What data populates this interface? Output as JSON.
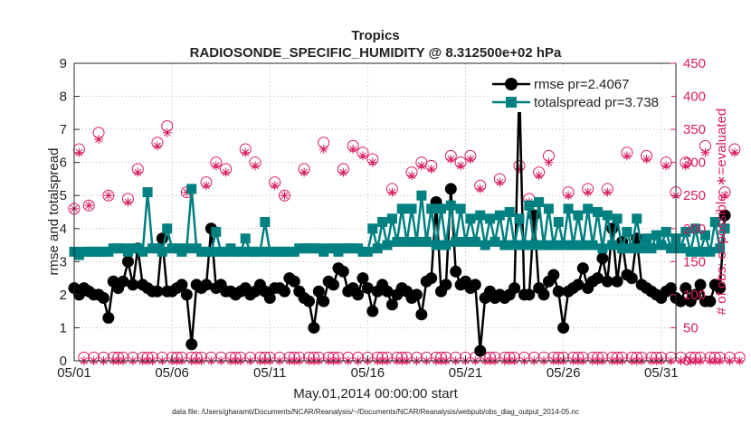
{
  "chart_data": {
    "type": "line",
    "title": "Tropics",
    "subtitle": "RADIOSONDE_SPECIFIC_HUMIDITY @ 8.312500e+02 hPa",
    "xlabel": "May.01,2014 00:00:00 start",
    "ylabel_left": "rmse and totalspread",
    "ylabel_right": "# of obs: o=possible; ∗=evaluated",
    "footnote": "data file: /Users/gharamti/Documents/NCAR/Reanalysis/~/Documents/NCAR/Reanalysis/webpub/obs_diag_output_2014-05.nc",
    "x_ticks": [
      {
        "day": 1,
        "label": "05/01"
      },
      {
        "day": 6,
        "label": "05/06"
      },
      {
        "day": 11,
        "label": "05/11"
      },
      {
        "day": 16,
        "label": "05/16"
      },
      {
        "day": 21,
        "label": "05/21"
      },
      {
        "day": 26,
        "label": "05/26"
      },
      {
        "day": 31,
        "label": "05/31"
      }
    ],
    "xlim": [
      1,
      31.75
    ],
    "ylim_left": [
      0,
      9
    ],
    "yticks_left": [
      "0",
      "1",
      "2",
      "3",
      "4",
      "5",
      "6",
      "7",
      "8",
      "9"
    ],
    "ylim_right": [
      0,
      450
    ],
    "yticks_right": [
      "0",
      "50",
      "100",
      "150",
      "200",
      "250",
      "300",
      "350",
      "400",
      "450"
    ],
    "step_days": 0.25,
    "series": [
      {
        "name": "rmse pr=2.4067",
        "color": "#000000",
        "axis": "left",
        "values": [
          2.2,
          2.0,
          2.2,
          2.1,
          2.0,
          2.0,
          1.9,
          1.3,
          2.4,
          2.2,
          2.4,
          3.0,
          2.3,
          3.4,
          2.3,
          2.2,
          2.1,
          2.1,
          3.7,
          2.1,
          2.1,
          2.2,
          2.3,
          2.0,
          0.5,
          2.3,
          2.2,
          2.3,
          4.0,
          2.2,
          2.3,
          2.1,
          2.1,
          2.0,
          2.1,
          2.2,
          2.0,
          2.1,
          2.3,
          2.1,
          1.9,
          2.2,
          2.2,
          2.1,
          2.5,
          2.4,
          2.1,
          1.9,
          1.8,
          1.0,
          2.1,
          1.8,
          2.4,
          2.3,
          2.8,
          2.7,
          2.1,
          2.2,
          2.0,
          2.5,
          2.2,
          1.5,
          2.1,
          2.3,
          2.1,
          1.7,
          2.0,
          2.2,
          2.1,
          1.9,
          2.0,
          1.4,
          2.4,
          2.5,
          4.8,
          2.1,
          2.3,
          5.2,
          2.7,
          2.3,
          2.4,
          2.2,
          2.3,
          0.3,
          1.9,
          2.1,
          1.9,
          2.0,
          1.9,
          2.0,
          2.2,
          8.3,
          2.0,
          2.0,
          4.4,
          2.2,
          2.0,
          2.4,
          2.6,
          2.1,
          1.0,
          2.1,
          2.2,
          2.3,
          2.8,
          2.2,
          2.4,
          2.5,
          3.1,
          2.4,
          4.0,
          2.4,
          3.6,
          2.6,
          2.5,
          3.7,
          2.3,
          2.2,
          2.1,
          2.0,
          1.9,
          2.1,
          2.2,
          1.9,
          1.8,
          2.2,
          1.8,
          2.0,
          2.3,
          1.8,
          1.8,
          2.3,
          2.2,
          4.4
        ]
      },
      {
        "name": "totalspread pr=3.738",
        "color": "#008080",
        "axis": "left",
        "values": [
          3.3,
          3.2,
          3.3,
          3.3,
          3.3,
          3.3,
          3.3,
          3.3,
          3.4,
          3.4,
          3.4,
          3.3,
          3.4,
          3.4,
          3.3,
          5.1,
          3.4,
          3.4,
          3.3,
          4.0,
          3.4,
          3.4,
          3.3,
          3.4,
          5.2,
          3.4,
          3.3,
          3.3,
          3.3,
          3.9,
          3.3,
          3.3,
          3.4,
          3.3,
          3.3,
          3.7,
          3.3,
          3.3,
          3.3,
          4.2,
          3.3,
          3.3,
          3.3,
          3.3,
          3.3,
          3.3,
          3.4,
          3.4,
          3.4,
          3.4,
          3.4,
          3.3,
          3.4,
          3.4,
          3.3,
          3.4,
          3.4,
          3.4,
          3.4,
          3.3,
          3.3,
          4.0,
          3.4,
          4.2,
          3.5,
          4.3,
          3.6,
          4.6,
          3.6,
          4.6,
          3.6,
          5.0,
          3.6,
          4.6,
          3.5,
          4.6,
          3.5,
          4.7,
          3.6,
          4.6,
          3.6,
          4.3,
          3.6,
          4.4,
          3.5,
          4.3,
          3.6,
          4.4,
          3.5,
          4.5,
          3.5,
          4.3,
          3.5,
          4.7,
          3.5,
          4.8,
          3.5,
          4.6,
          3.5,
          4.2,
          3.5,
          4.6,
          3.5,
          4.4,
          3.5,
          4.6,
          3.5,
          4.5,
          3.4,
          4.4,
          3.5,
          4.3,
          3.4,
          3.9,
          3.4,
          4.3,
          3.4,
          3.7,
          3.4,
          3.8,
          3.5,
          3.9,
          3.4,
          3.7,
          3.4,
          3.9,
          3.3,
          4.0,
          3.3,
          3.8,
          3.3,
          4.2,
          3.4,
          4.0
        ]
      },
      {
        "name": "possible",
        "color": "#d81b60",
        "axis": "right",
        "marker": "circle",
        "values": [
          230,
          320,
          5,
          235,
          5,
          345,
          5,
          250,
          5,
          5,
          5,
          245,
          5,
          290,
          5,
          5,
          5,
          330,
          5,
          355,
          5,
          5,
          5,
          255,
          5,
          5,
          5,
          270,
          5,
          300,
          5,
          290,
          5,
          5,
          5,
          320,
          5,
          300,
          5,
          5,
          5,
          270,
          5,
          250,
          5,
          5,
          5,
          290,
          5,
          5,
          5,
          330,
          5,
          5,
          5,
          290,
          5,
          325,
          5,
          315,
          5,
          305,
          5,
          5,
          5,
          260,
          5,
          5,
          5,
          285,
          5,
          300,
          5,
          295,
          5,
          5,
          5,
          310,
          5,
          300,
          5,
          310,
          5,
          265,
          5,
          5,
          5,
          275,
          5,
          5,
          5,
          295,
          5,
          245,
          5,
          285,
          5,
          310,
          5,
          5,
          5,
          255,
          5,
          5,
          5,
          260,
          5,
          5,
          5,
          260,
          5,
          5,
          5,
          315,
          5,
          5,
          5,
          310,
          5,
          5,
          5,
          300,
          5,
          255,
          5,
          300,
          5,
          5,
          5,
          325,
          5,
          5,
          5,
          255,
          5,
          320,
          5
        ]
      },
      {
        "name": "evaluated",
        "color": "#d81b60",
        "axis": "right",
        "marker": "star",
        "values": [
          230,
          315,
          0,
          235,
          0,
          335,
          0,
          250,
          0,
          0,
          0,
          240,
          0,
          285,
          0,
          0,
          0,
          325,
          0,
          345,
          0,
          0,
          0,
          255,
          0,
          0,
          0,
          265,
          0,
          295,
          0,
          285,
          0,
          0,
          0,
          315,
          0,
          295,
          0,
          0,
          0,
          265,
          0,
          250,
          0,
          0,
          0,
          285,
          0,
          0,
          0,
          320,
          0,
          0,
          0,
          285,
          0,
          320,
          0,
          310,
          0,
          300,
          0,
          0,
          0,
          255,
          0,
          0,
          0,
          280,
          0,
          295,
          0,
          290,
          0,
          0,
          0,
          305,
          0,
          295,
          0,
          305,
          0,
          260,
          0,
          0,
          0,
          270,
          0,
          0,
          0,
          290,
          0,
          240,
          0,
          280,
          0,
          300,
          0,
          0,
          0,
          250,
          0,
          0,
          0,
          255,
          0,
          0,
          0,
          255,
          0,
          0,
          0,
          310,
          0,
          0,
          0,
          305,
          0,
          0,
          0,
          295,
          0,
          250,
          0,
          295,
          0,
          0,
          0,
          315,
          0,
          0,
          0,
          250,
          0,
          315,
          0
        ]
      }
    ],
    "legend": {
      "location": "top-right",
      "entries": [
        "rmse pr=2.4067",
        "totalspread pr=3.738"
      ]
    },
    "grid": true
  }
}
